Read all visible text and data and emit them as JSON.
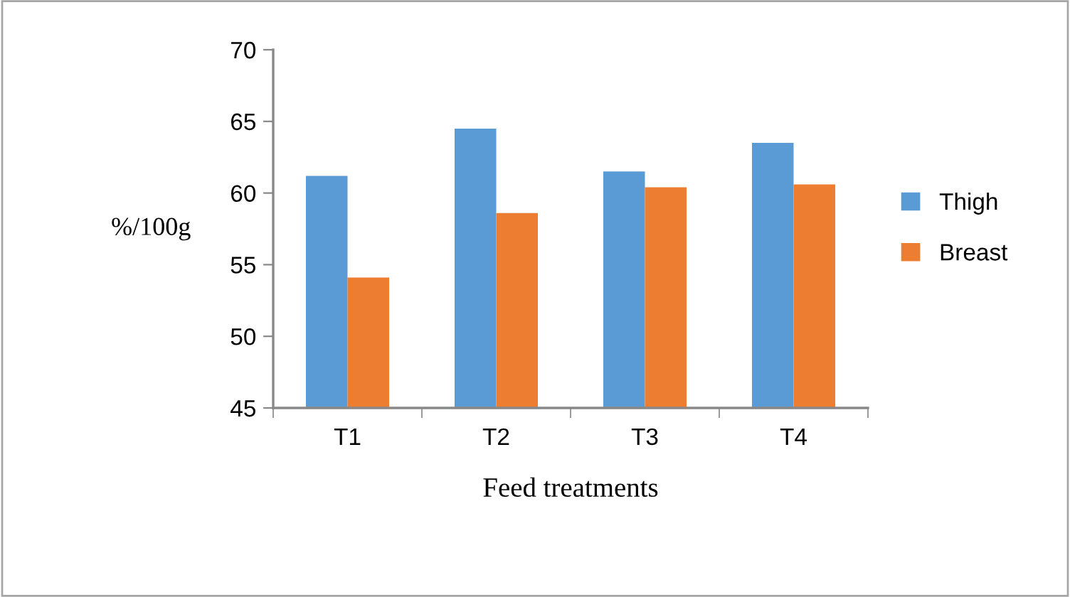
{
  "chart_data": {
    "type": "bar",
    "xlabel": "Feed treatments",
    "ylabel": "%/100g",
    "categories": [
      "T1",
      "T2",
      "T3",
      "T4"
    ],
    "series": [
      {
        "name": "Thigh",
        "color": "#5b9bd5",
        "values": [
          61.2,
          64.5,
          61.5,
          63.5
        ]
      },
      {
        "name": "Breast",
        "color": "#ed7d31",
        "values": [
          54.1,
          58.6,
          60.4,
          60.6
        ]
      }
    ],
    "ylim": [
      45,
      70
    ],
    "yticks": [
      45,
      50,
      55,
      60,
      65,
      70
    ],
    "grid": false,
    "legend": "right"
  }
}
